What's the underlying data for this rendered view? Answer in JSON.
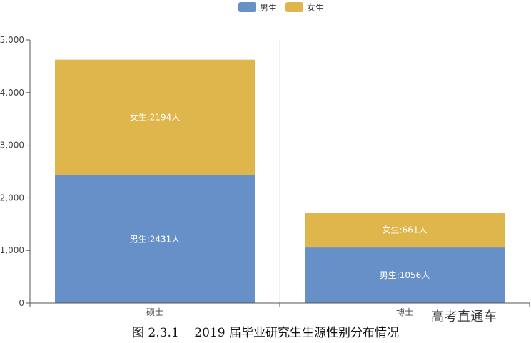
{
  "chart_data": {
    "type": "bar",
    "stacked": true,
    "categories": [
      "硕士",
      "博士"
    ],
    "series": [
      {
        "name": "男生",
        "values": [
          2431,
          1056
        ],
        "labels": [
          "男生:2431人",
          "男生:1056人"
        ],
        "color": "#6690c7"
      },
      {
        "name": "女生",
        "values": [
          2194,
          661
        ],
        "labels": [
          "女生:2194人",
          "女生:661人"
        ],
        "color": "#dfb64c"
      }
    ],
    "ylim": [
      0,
      5000
    ],
    "yticks": [
      "0",
      "1,000",
      "2,000",
      "3,000",
      "4,000",
      "5,000"
    ],
    "legend_position": "top-center",
    "grid": "vertical-divider"
  },
  "caption": "图 2.3.1    2019 届毕业研究生生源性别分布情况",
  "watermark": "高考直通车"
}
